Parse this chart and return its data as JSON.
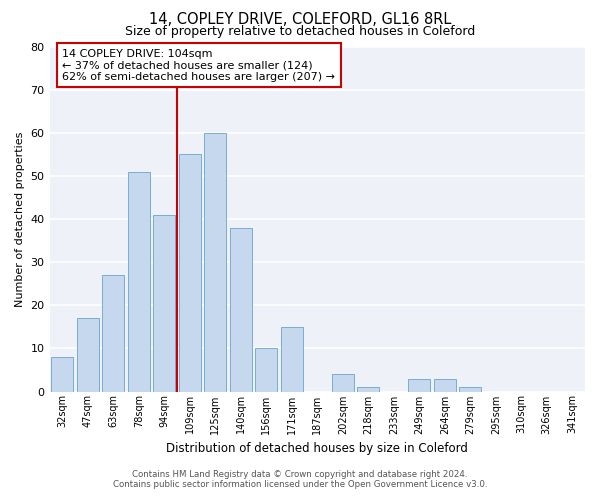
{
  "title": "14, COPLEY DRIVE, COLEFORD, GL16 8RL",
  "subtitle": "Size of property relative to detached houses in Coleford",
  "xlabel": "Distribution of detached houses by size in Coleford",
  "ylabel": "Number of detached properties",
  "bar_color": "#c5d8ee",
  "bar_edge_color": "#7aadd4",
  "background_color": "#eef2f8",
  "categories": [
    "32sqm",
    "47sqm",
    "63sqm",
    "78sqm",
    "94sqm",
    "109sqm",
    "125sqm",
    "140sqm",
    "156sqm",
    "171sqm",
    "187sqm",
    "202sqm",
    "218sqm",
    "233sqm",
    "249sqm",
    "264sqm",
    "279sqm",
    "295sqm",
    "310sqm",
    "326sqm",
    "341sqm"
  ],
  "values": [
    8,
    17,
    27,
    51,
    41,
    55,
    60,
    38,
    10,
    15,
    0,
    4,
    1,
    0,
    3,
    3,
    1,
    0,
    0,
    0,
    0
  ],
  "ylim": [
    0,
    80
  ],
  "yticks": [
    0,
    10,
    20,
    30,
    40,
    50,
    60,
    70,
    80
  ],
  "annotation_box_text": "14 COPLEY DRIVE: 104sqm\n← 37% of detached houses are smaller (124)\n62% of semi-detached houses are larger (207) →",
  "annotation_box_color": "#ffffff",
  "annotation_box_edge_color": "#cc0000",
  "red_line_color": "#cc0000",
  "footer_line1": "Contains HM Land Registry data © Crown copyright and database right 2024.",
  "footer_line2": "Contains public sector information licensed under the Open Government Licence v3.0."
}
